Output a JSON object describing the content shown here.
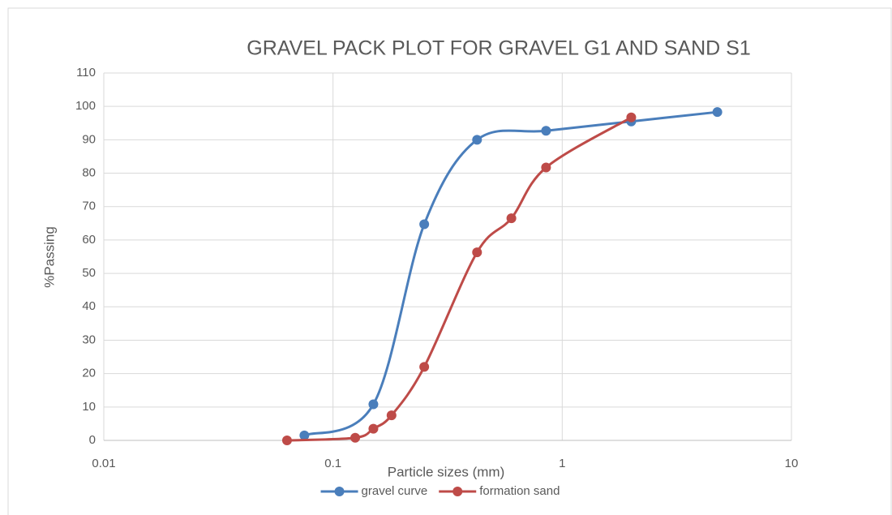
{
  "chart_data": {
    "type": "line",
    "title": "GRAVEL PACK PLOT FOR GRAVEL G1 AND SAND S1",
    "xlabel": "Particle sizes (mm)",
    "ylabel": "%Passing",
    "xscale": "log",
    "smooth": true,
    "xlim": [
      0.01,
      10
    ],
    "xticks": [
      0.01,
      0.1,
      1,
      10
    ],
    "ylim": [
      0,
      110
    ],
    "yticks": [
      0,
      10,
      20,
      30,
      40,
      50,
      60,
      70,
      80,
      90,
      100,
      110
    ],
    "grid": true,
    "legend": "bottom",
    "series": [
      {
        "name": "gravel curve",
        "color": "#4a7ebb",
        "x": [
          0.075,
          0.15,
          0.25,
          0.425,
          0.85,
          2.0,
          4.75
        ],
        "values": [
          1.5,
          10.8,
          64.7,
          90,
          92.7,
          95.5,
          98.3
        ]
      },
      {
        "name": "formation sand",
        "color": "#be4b48",
        "x": [
          0.063,
          0.125,
          0.15,
          0.18,
          0.25,
          0.425,
          0.6,
          0.85,
          2.0
        ],
        "values": [
          0,
          0.8,
          3.5,
          7.5,
          22,
          56.3,
          66.5,
          81.7,
          96.7
        ]
      }
    ]
  }
}
